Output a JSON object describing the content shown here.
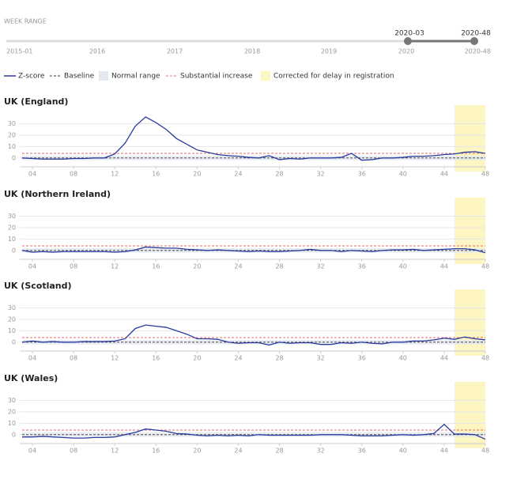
{
  "week_range": {
    "label": "WEEK RANGE",
    "years": [
      "2015-01",
      "2016",
      "2017",
      "2018",
      "2019",
      "2020"
    ],
    "end_label": "2020-48",
    "handles": [
      "2020-03",
      "2020-48"
    ]
  },
  "legend": {
    "items": [
      {
        "name": "Z-score",
        "color": "#2a3b9e"
      },
      {
        "name": "Baseline",
        "color": "#333333"
      },
      {
        "name": "Normal range",
        "color": "#e4e8f0"
      },
      {
        "name": "Substantial increase",
        "color": "#e06b6b"
      },
      {
        "name": "Corrected for delay in registration",
        "color": "#fdf6c3"
      }
    ]
  },
  "chart_data": [
    {
      "type": "line",
      "title": "UK (England)",
      "x": [
        3,
        4,
        5,
        6,
        7,
        8,
        9,
        10,
        11,
        12,
        13,
        14,
        15,
        16,
        17,
        18,
        19,
        20,
        21,
        22,
        23,
        24,
        25,
        26,
        27,
        28,
        29,
        30,
        31,
        32,
        33,
        34,
        35,
        36,
        37,
        38,
        39,
        40,
        41,
        42,
        43,
        44,
        45,
        46,
        47,
        48
      ],
      "values": [
        0,
        -0.5,
        -1,
        -1,
        -1,
        -0.5,
        -0.5,
        0,
        0,
        3.5,
        13,
        28,
        36,
        31,
        25,
        17,
        12,
        7,
        5,
        3,
        2,
        1.5,
        0.5,
        0,
        2,
        -1.5,
        -0.5,
        -1,
        0,
        0,
        0,
        0.5,
        4,
        -2,
        -1.5,
        0,
        0,
        0.5,
        1.5,
        1.5,
        2,
        3,
        3.5,
        5,
        5.5,
        4
      ],
      "color": "#2a3b9e",
      "xlim": [
        3,
        48
      ],
      "ylim": [
        -5,
        38
      ],
      "yticks": [
        0,
        10,
        20,
        30
      ],
      "xticks": [
        {
          "value": 4,
          "label": "04"
        },
        {
          "value": 8,
          "label": "08"
        },
        12,
        16,
        20,
        24,
        28,
        32,
        36,
        40,
        44,
        48
      ],
      "baseline": 0,
      "normal_range": [
        -2,
        2
      ],
      "substantial_increase": 4,
      "corrected_range": [
        45,
        48
      ],
      "grid": true
    },
    {
      "type": "line",
      "title": "UK (Northern Ireland)",
      "x": [
        3,
        4,
        5,
        6,
        7,
        8,
        9,
        10,
        11,
        12,
        13,
        14,
        15,
        16,
        17,
        18,
        19,
        20,
        21,
        22,
        23,
        24,
        25,
        26,
        27,
        28,
        29,
        30,
        31,
        32,
        33,
        34,
        35,
        36,
        37,
        38,
        39,
        40,
        41,
        42,
        43,
        44,
        45,
        46,
        47,
        48
      ],
      "values": [
        0,
        -1.5,
        -1,
        -1.5,
        -1,
        -1,
        -1,
        -1,
        -1,
        -1.5,
        -1,
        0.5,
        3,
        2.5,
        2,
        2,
        1,
        0.5,
        0,
        0.5,
        0,
        -0.5,
        -1,
        -0.5,
        -1,
        -1,
        -0.5,
        0,
        1,
        0,
        0,
        -1,
        0,
        -0.5,
        -1,
        0,
        0.5,
        0.5,
        1,
        0,
        0.5,
        1,
        1.5,
        1.5,
        0.5,
        -2
      ],
      "color": "#2a3b9e",
      "xlim": [
        3,
        48
      ],
      "ylim": [
        -5,
        38
      ],
      "yticks": [
        0,
        10,
        20,
        30
      ],
      "xticks": [
        {
          "value": 4,
          "label": "04"
        },
        {
          "value": 8,
          "label": "08"
        },
        12,
        16,
        20,
        24,
        28,
        32,
        36,
        40,
        44,
        48
      ],
      "baseline": 0,
      "normal_range": [
        -2,
        2
      ],
      "substantial_increase": 4,
      "corrected_range": [
        45,
        48
      ],
      "grid": true
    },
    {
      "type": "line",
      "title": "UK (Scotland)",
      "x": [
        3,
        4,
        5,
        6,
        7,
        8,
        9,
        10,
        11,
        12,
        13,
        14,
        15,
        16,
        17,
        18,
        19,
        20,
        21,
        22,
        23,
        24,
        25,
        26,
        27,
        28,
        29,
        30,
        31,
        32,
        33,
        34,
        35,
        36,
        37,
        38,
        39,
        40,
        41,
        42,
        43,
        44,
        45,
        46,
        47,
        48
      ],
      "values": [
        0,
        1,
        0,
        0.5,
        0,
        0,
        0.5,
        0.5,
        0.5,
        1,
        3,
        12,
        15,
        14,
        13,
        10,
        7,
        3,
        3,
        2.5,
        0,
        -1,
        -0.5,
        -0.5,
        -2.5,
        0,
        -1,
        -0.5,
        -0.5,
        -2,
        -2,
        -0.5,
        -1,
        0,
        -1,
        -1.5,
        0,
        0,
        1,
        1,
        2,
        3.5,
        2.5,
        4.5,
        3,
        2
      ],
      "color": "#2a3b9e",
      "xlim": [
        3,
        48
      ],
      "ylim": [
        -5,
        38
      ],
      "yticks": [
        0,
        10,
        20,
        30
      ],
      "xticks": [
        {
          "value": 4,
          "label": "04"
        },
        {
          "value": 8,
          "label": "08"
        },
        12,
        16,
        20,
        24,
        28,
        32,
        36,
        40,
        44,
        48
      ],
      "baseline": 0,
      "normal_range": [
        -2,
        2
      ],
      "substantial_increase": 4,
      "corrected_range": [
        45,
        48
      ],
      "grid": true
    },
    {
      "type": "line",
      "title": "UK (Wales)",
      "x": [
        3,
        4,
        5,
        6,
        7,
        8,
        9,
        10,
        11,
        12,
        13,
        14,
        15,
        16,
        17,
        18,
        19,
        20,
        21,
        22,
        23,
        24,
        25,
        26,
        27,
        28,
        29,
        30,
        31,
        32,
        33,
        34,
        35,
        36,
        37,
        38,
        39,
        40,
        41,
        42,
        43,
        44,
        45,
        46,
        47,
        48
      ],
      "values": [
        -2,
        -2,
        -1.5,
        -2,
        -2.5,
        -3,
        -3,
        -2.5,
        -2.5,
        -2,
        0,
        2,
        5,
        4,
        3,
        1,
        0.5,
        -0.5,
        -1,
        -0.5,
        -1,
        -0.5,
        -1,
        0,
        -0.5,
        -0.5,
        -0.5,
        -0.5,
        -0.5,
        0,
        0,
        0,
        -0.5,
        -1,
        -1,
        -1,
        -0.5,
        0,
        -0.5,
        0,
        1,
        9,
        0.5,
        0.5,
        0,
        -4
      ],
      "color": "#2a3b9e",
      "xlim": [
        3,
        48
      ],
      "ylim": [
        -5,
        38
      ],
      "yticks": [
        0,
        10,
        20,
        30
      ],
      "xticks": [
        {
          "value": 4,
          "label": "04"
        },
        {
          "value": 8,
          "label": "08"
        },
        12,
        16,
        20,
        24,
        28,
        32,
        36,
        40,
        44,
        48
      ],
      "baseline": 0,
      "normal_range": [
        -2,
        2
      ],
      "substantial_increase": 4,
      "corrected_range": [
        45,
        48
      ],
      "grid": true
    }
  ]
}
